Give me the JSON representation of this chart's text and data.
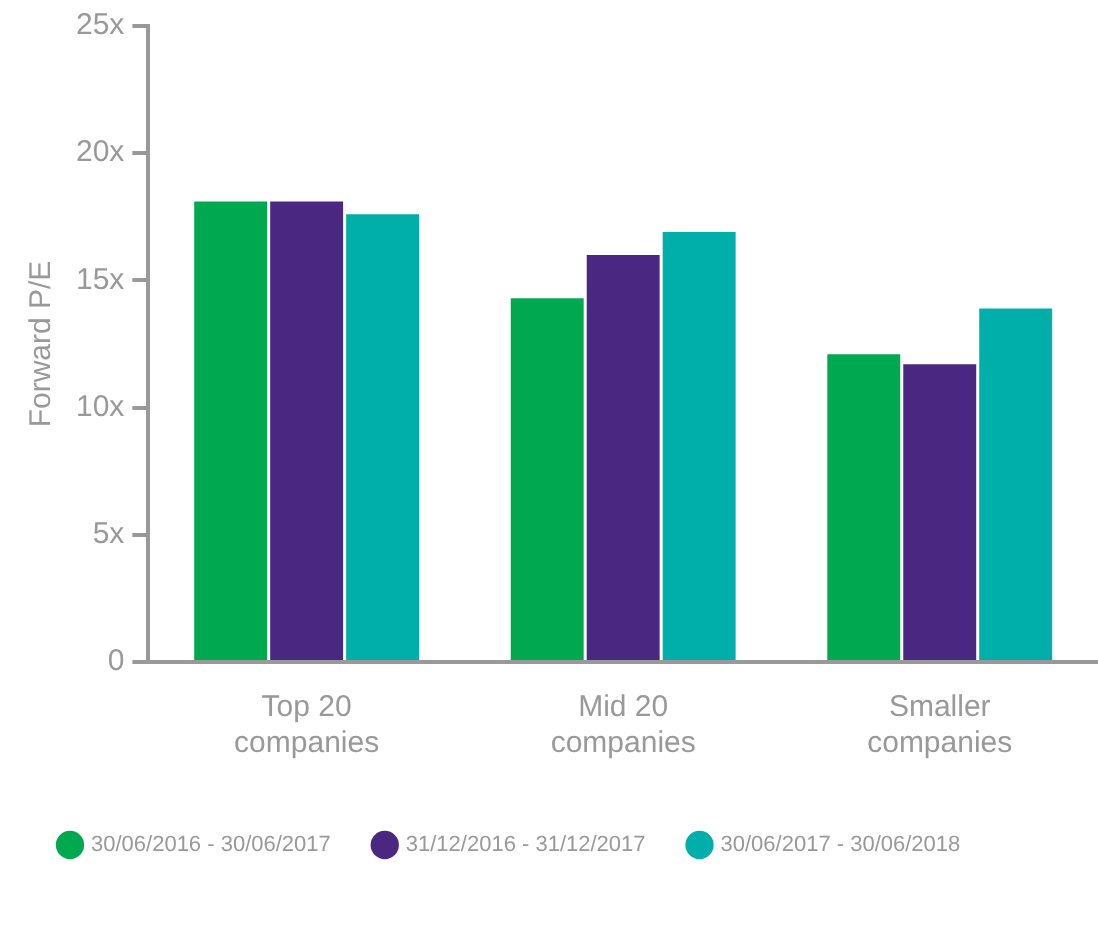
{
  "chart_data": {
    "type": "bar",
    "ylabel": "Forward P/E",
    "categories": [
      "Top 20\ncompanies",
      "Mid 20\ncompanies",
      "Smaller\ncompanies"
    ],
    "series": [
      {
        "name": "30/06/2016 - 30/06/2017",
        "color": "#00a94f",
        "values": [
          18.1,
          14.3,
          12.1
        ]
      },
      {
        "name": "31/12/2016 - 31/12/2017",
        "color": "#4a2882",
        "values": [
          18.1,
          16.0,
          11.7
        ]
      },
      {
        "name": "30/06/2017 - 30/06/2018",
        "color": "#00aeaa",
        "values": [
          17.6,
          16.9,
          13.9
        ]
      }
    ],
    "ylim": [
      0,
      25
    ],
    "yticks": [
      0,
      {
        "value": 5,
        "label": "5x"
      },
      {
        "value": 10,
        "label": "10x"
      },
      {
        "value": 15,
        "label": "15x"
      },
      {
        "value": 20,
        "label": "20x"
      },
      {
        "value": 25,
        "label": "25x"
      }
    ],
    "grid": false,
    "legend": "bottom"
  }
}
